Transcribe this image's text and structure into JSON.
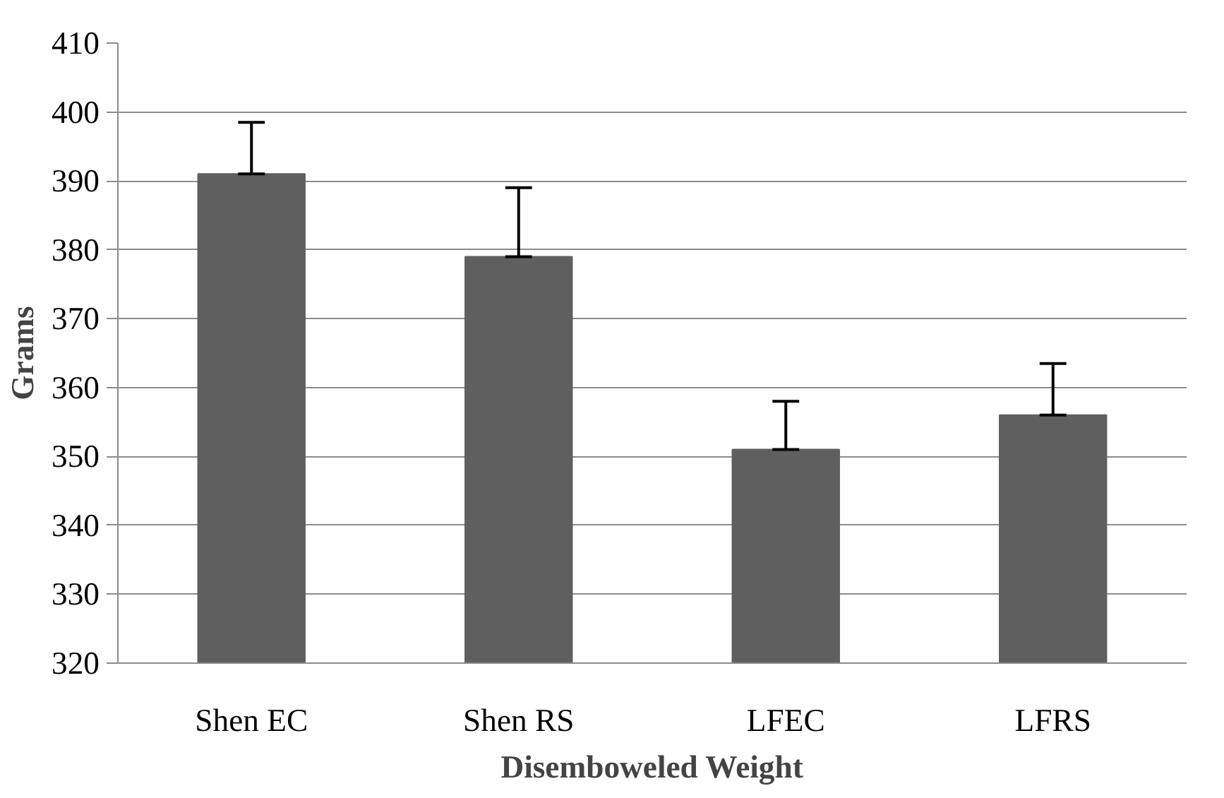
{
  "chart_data": {
    "type": "bar",
    "xlabel": "Disemboweled Weight",
    "ylabel": "Grams",
    "categories": [
      "Shen EC",
      "Shen RS",
      "LFEC",
      "LFRS"
    ],
    "values": [
      391,
      379,
      351,
      356
    ],
    "errors": [
      [
        391,
        398.5
      ],
      [
        379,
        389
      ],
      [
        351,
        358
      ],
      [
        356,
        363.5
      ]
    ],
    "color": "#5f5f5f",
    "ylim": [
      320,
      410
    ],
    "yticks": [
      320,
      330,
      340,
      350,
      360,
      370,
      380,
      390,
      400,
      410
    ],
    "grid": "y"
  }
}
